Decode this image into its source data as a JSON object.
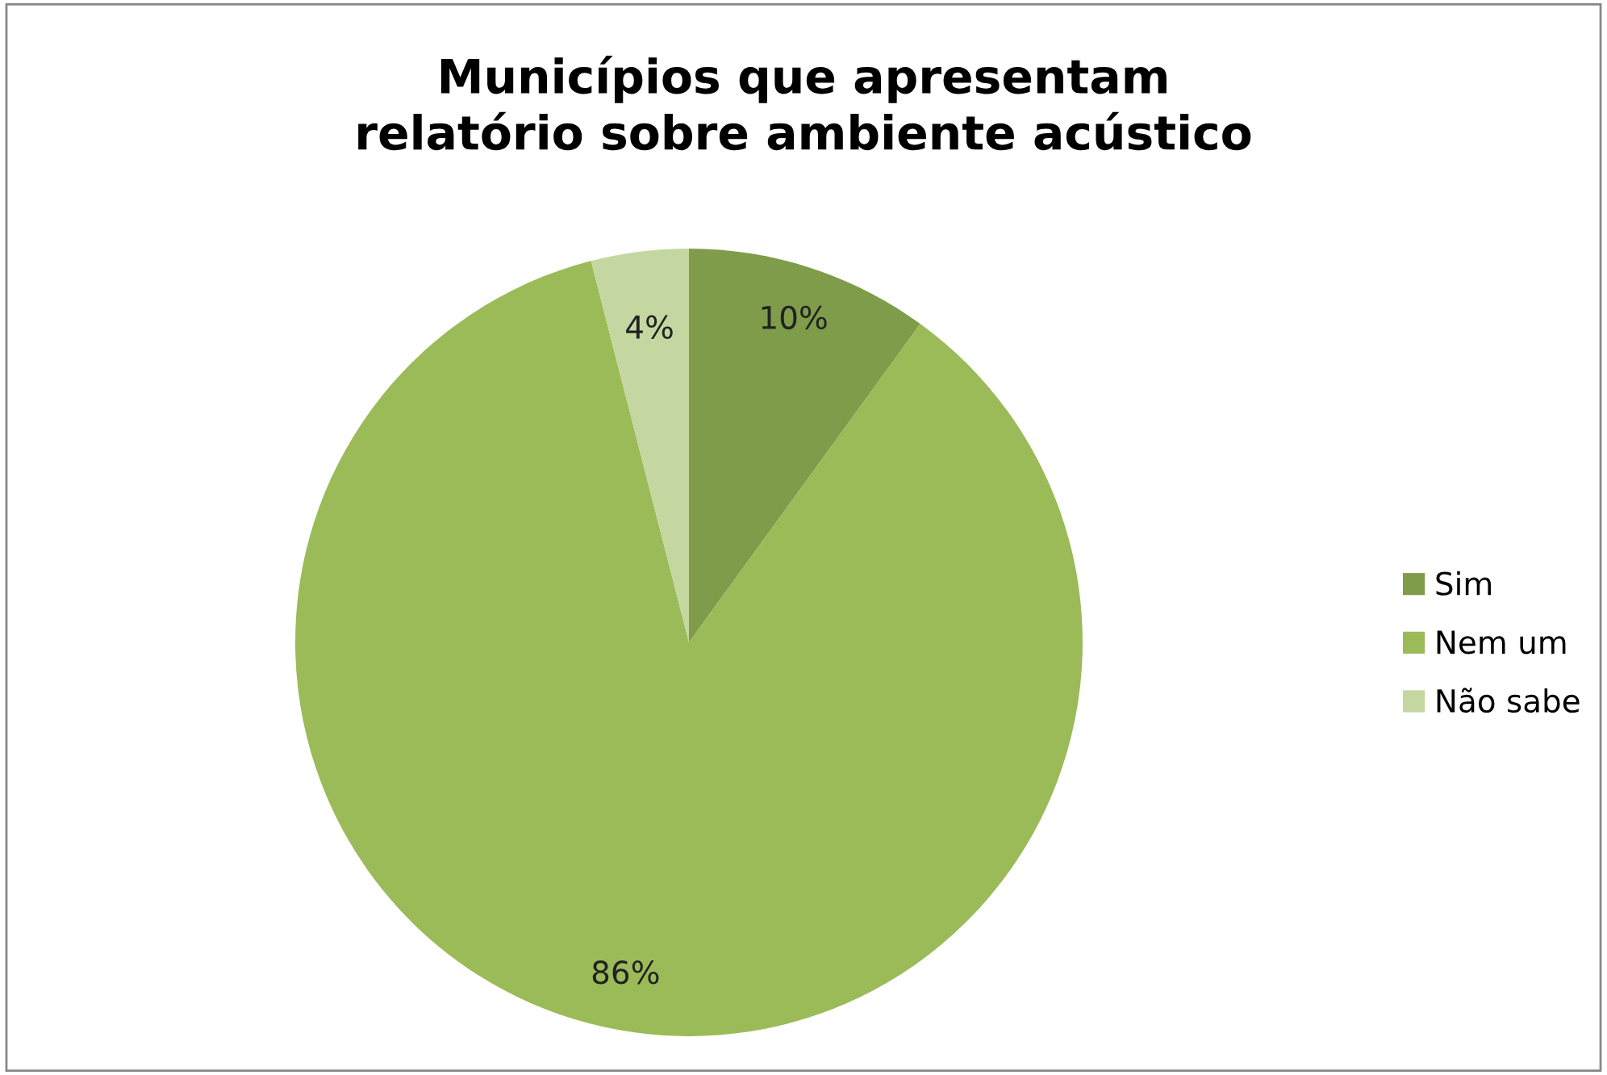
{
  "chart_data": {
    "type": "pie",
    "title": "Municípios que apresentam\nrelatório sobre ambiente acústico",
    "categories": [
      "Sim",
      "Nem um",
      "Não sabe"
    ],
    "values": [
      10,
      86,
      4
    ],
    "colors": [
      "#7f9c4a",
      "#9bbb59",
      "#c4d7a0"
    ],
    "value_labels": [
      "10%",
      "86%",
      "4%"
    ],
    "legend": "right"
  }
}
